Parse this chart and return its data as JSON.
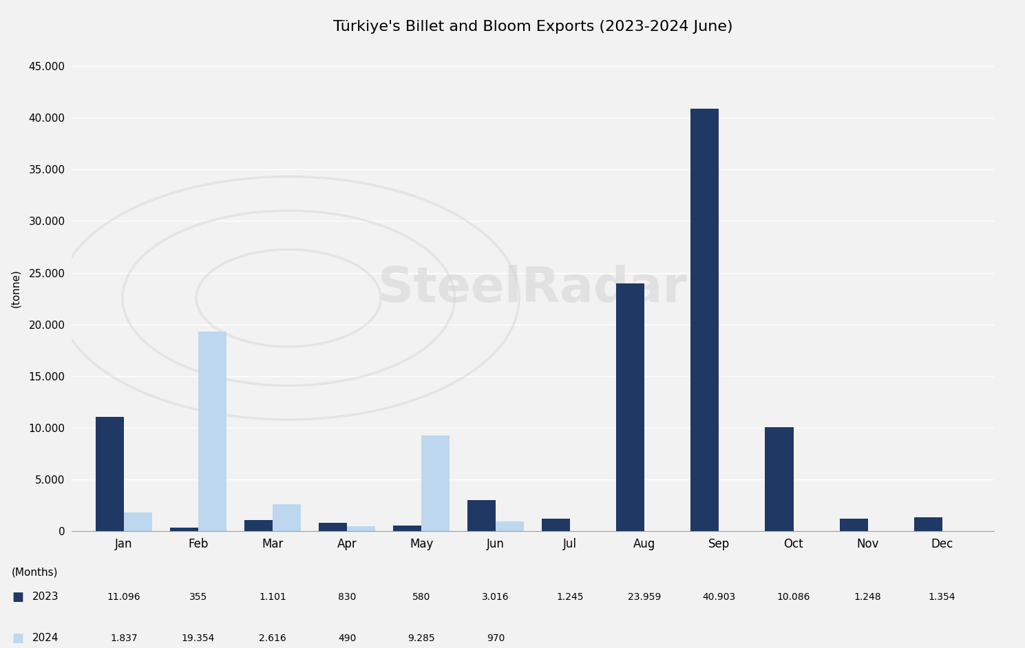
{
  "title": "Türkiye's Billet and Bloom Exports (2023-2024 June)",
  "ylabel": "(tonne)",
  "xlabel": "(Months)",
  "months": [
    "Jan",
    "Feb",
    "Mar",
    "Apr",
    "May",
    "Jun",
    "Jul",
    "Aug",
    "Sep",
    "Oct",
    "Nov",
    "Dec"
  ],
  "data_2023": [
    11096,
    355,
    1101,
    830,
    580,
    3016,
    1245,
    23959,
    40903,
    10086,
    1248,
    1354
  ],
  "data_2024": [
    1837,
    19354,
    2616,
    490,
    9285,
    970,
    null,
    null,
    null,
    null,
    null,
    null
  ],
  "labels_2023": [
    "11.096",
    "355",
    "1.101",
    "830",
    "580",
    "3.016",
    "1.245",
    "23.959",
    "40.903",
    "10.086",
    "1.248",
    "1.354"
  ],
  "labels_2024": [
    "1.837",
    "19.354",
    "2.616",
    "490",
    "9.285",
    "970",
    "",
    "",
    "",
    "",
    "",
    ""
  ],
  "color_2023": "#1F3864",
  "color_2024": "#BDD7EE",
  "ylim": [
    0,
    47000
  ],
  "yticks": [
    0,
    5000,
    10000,
    15000,
    20000,
    25000,
    30000,
    35000,
    40000,
    45000
  ],
  "ytick_labels": [
    "0",
    "5.000",
    "10.000",
    "15.000",
    "20.000",
    "25.000",
    "30.000",
    "35.000",
    "40.000",
    "45.000"
  ],
  "background_color": "#F2F2F2",
  "watermark_text": "SteelRadar",
  "title_fontsize": 16,
  "bar_width": 0.38,
  "legend_2023": "2023",
  "legend_2024": "2024"
}
